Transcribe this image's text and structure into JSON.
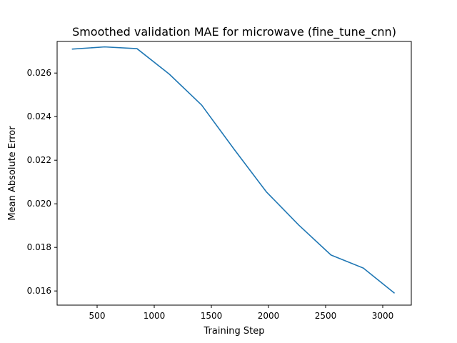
{
  "chart_data": {
    "type": "line",
    "title": "Smoothed validation MAE for microwave (fine_tune_cnn)",
    "xlabel": "Training Step",
    "ylabel": "Mean Absolute Error",
    "xlim": [
      150,
      3250
    ],
    "ylim": [
      0.01535,
      0.02745
    ],
    "xticks": [
      500,
      1000,
      1500,
      2000,
      2500,
      3000
    ],
    "xtick_labels": [
      "500",
      "1000",
      "1500",
      "2000",
      "2500",
      "3000"
    ],
    "yticks": [
      0.016,
      0.018,
      0.02,
      0.022,
      0.024,
      0.026
    ],
    "ytick_labels": [
      "0.016",
      "0.018",
      "0.020",
      "0.022",
      "0.024",
      "0.026"
    ],
    "grid": false,
    "series": [
      {
        "color": "#1f77b4",
        "x": [
          283,
          566,
          849,
          1132,
          1415,
          1698,
          1981,
          2264,
          2547,
          2830,
          3100
        ],
        "y": [
          0.0271,
          0.0272,
          0.02712,
          0.02595,
          0.02453,
          0.02251,
          0.02055,
          0.01903,
          0.01765,
          0.01705,
          0.01591
        ]
      }
    ]
  }
}
